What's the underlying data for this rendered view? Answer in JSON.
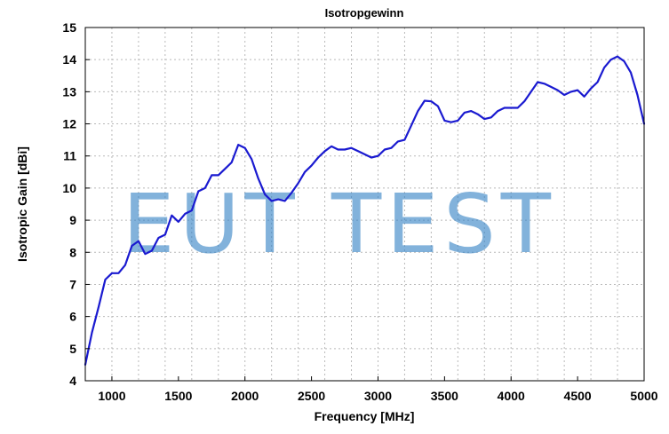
{
  "chart_data": {
    "type": "line",
    "title": "Isotropgewinn",
    "xlabel": "Frequency [MHz]",
    "ylabel": "Isotropic Gain [dBi]",
    "xlim": [
      800,
      5000
    ],
    "ylim": [
      4,
      15
    ],
    "xticks": [
      1000,
      1500,
      2000,
      2500,
      3000,
      3500,
      4000,
      4500,
      5000
    ],
    "yticks": [
      4,
      5,
      6,
      7,
      8,
      9,
      10,
      11,
      12,
      13,
      14,
      15
    ],
    "grid": true,
    "watermark": "EUT TEST",
    "colors": {
      "line": "#1a1ad0",
      "watermark": "#2f7fc3",
      "grid": "#b9b9b9"
    },
    "series": [
      {
        "x": [
          800,
          850,
          900,
          950,
          1000,
          1050,
          1100,
          1150,
          1200,
          1250,
          1300,
          1350,
          1400,
          1450,
          1500,
          1550,
          1600,
          1650,
          1700,
          1750,
          1800,
          1850,
          1900,
          1950,
          2000,
          2050,
          2100,
          2150,
          2200,
          2250,
          2300,
          2350,
          2400,
          2450,
          2500,
          2550,
          2600,
          2650,
          2700,
          2750,
          2800,
          2850,
          2900,
          2950,
          3000,
          3050,
          3100,
          3150,
          3200,
          3250,
          3300,
          3350,
          3400,
          3450,
          3500,
          3550,
          3600,
          3650,
          3700,
          3750,
          3800,
          3850,
          3900,
          3950,
          4000,
          4050,
          4100,
          4150,
          4200,
          4250,
          4300,
          4350,
          4400,
          4450,
          4500,
          4550,
          4600,
          4650,
          4700,
          4750,
          4800,
          4850,
          4900,
          4950,
          5000
        ],
        "values": [
          4.5,
          5.5,
          6.3,
          7.15,
          7.35,
          7.35,
          7.6,
          8.2,
          8.35,
          7.95,
          8.05,
          8.45,
          8.55,
          9.15,
          8.95,
          9.2,
          9.3,
          9.9,
          10.0,
          10.4,
          10.4,
          10.6,
          10.8,
          11.35,
          11.25,
          10.9,
          10.3,
          9.8,
          9.6,
          9.65,
          9.6,
          9.85,
          10.15,
          10.5,
          10.7,
          10.95,
          11.15,
          11.3,
          11.2,
          11.2,
          11.25,
          11.15,
          11.05,
          10.95,
          11.0,
          11.2,
          11.25,
          11.45,
          11.5,
          11.95,
          12.4,
          12.72,
          12.7,
          12.55,
          12.1,
          12.05,
          12.1,
          12.35,
          12.4,
          12.3,
          12.15,
          12.2,
          12.4,
          12.5,
          12.5,
          12.5,
          12.7,
          13.0,
          13.3,
          13.25,
          13.15,
          13.05,
          12.9,
          13.0,
          13.05,
          12.85,
          13.1,
          13.3,
          13.75,
          14.0,
          14.1,
          13.95,
          13.6,
          12.9,
          12.0
        ]
      }
    ]
  }
}
